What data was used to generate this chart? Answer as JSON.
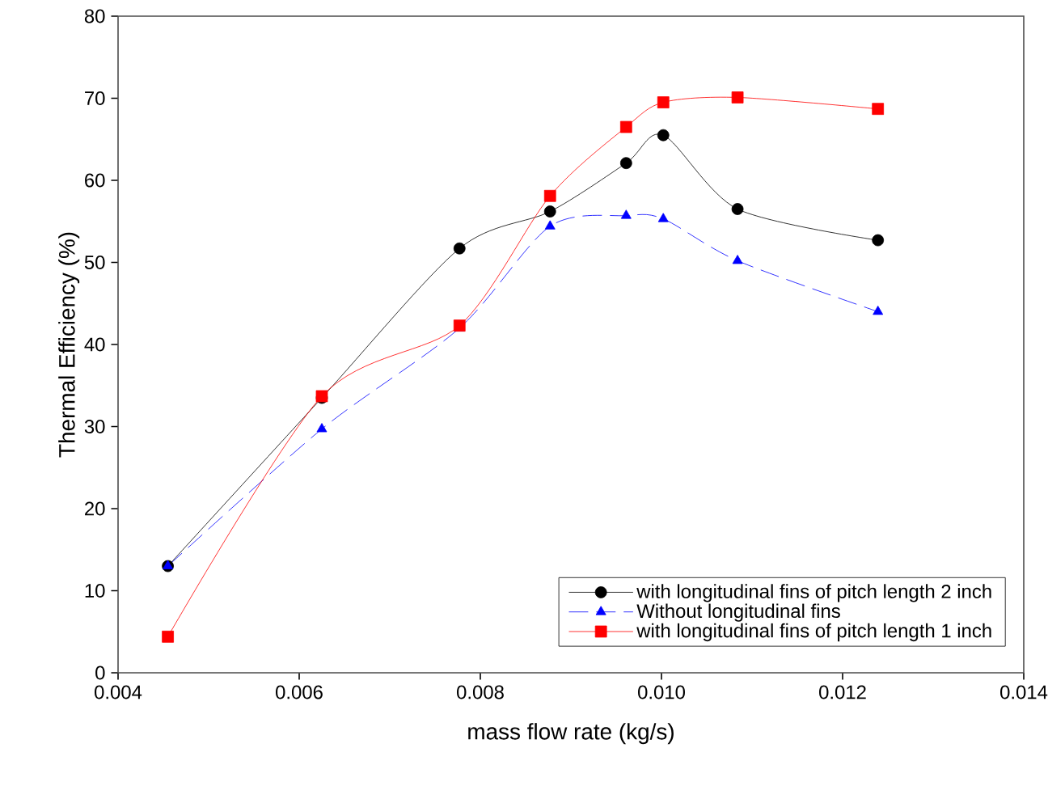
{
  "chart_data": {
    "type": "line",
    "xlabel": "mass flow rate (kg/s)",
    "ylabel": "Thermal Efficiency (%)",
    "x": [
      0.00455,
      0.00625,
      0.00777,
      0.00877,
      0.00961,
      0.01002,
      0.01084,
      0.01239
    ],
    "xlim": [
      0.004,
      0.014
    ],
    "xticks": [
      {
        "value": 0.004,
        "label": "0.004"
      },
      {
        "value": 0.006,
        "label": "0.006"
      },
      {
        "value": 0.008,
        "label": "0.008"
      },
      {
        "value": 0.01,
        "label": "0.010"
      },
      {
        "value": 0.012,
        "label": "0.012"
      },
      {
        "value": 0.014,
        "label": "0.014"
      }
    ],
    "ylim": [
      0,
      80
    ],
    "yticks": [
      0,
      10,
      20,
      30,
      40,
      50,
      60,
      70,
      80
    ],
    "legend": "bottom right",
    "series": [
      {
        "name": "with longitudinal fins of pitch length 2 inch",
        "color": "#000000",
        "marker": "circle",
        "line_style": "solid",
        "values": [
          13,
          33.5,
          51.7,
          56.2,
          62.1,
          65.5,
          56.5,
          52.7
        ]
      },
      {
        "name": "Without longitudinal fins",
        "color": "#0000ff",
        "marker": "triangle",
        "line_style": "dashed",
        "values": [
          13,
          29.7,
          42,
          54.4,
          55.7,
          55.3,
          50.2,
          44
        ]
      },
      {
        "name": "with longitudinal fins of pitch length 1 inch",
        "color": "#ff0000",
        "marker": "square",
        "line_style": "solid",
        "values": [
          4.4,
          33.7,
          42.3,
          58.1,
          66.5,
          69.5,
          70.1,
          68.7
        ]
      }
    ]
  }
}
